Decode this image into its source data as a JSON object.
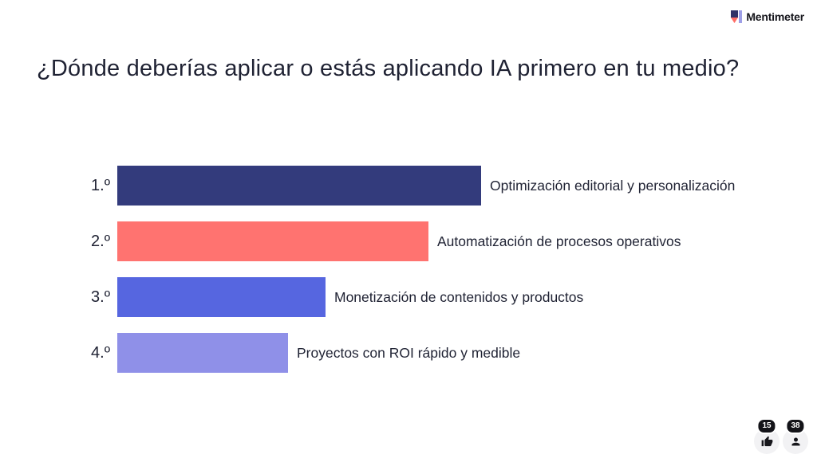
{
  "brand": {
    "logo_text": "Mentimeter",
    "logo_colors": {
      "navy": "#2f3268",
      "coral": "#ff6d66",
      "periwinkle": "#9e9fe7"
    }
  },
  "slide": {
    "title": "¿Dónde deberías aplicar o estás aplicando IA primero en tu medio?"
  },
  "chart": {
    "rows": [
      {
        "rank": "1.º",
        "label": "Optimización editorial y personalización",
        "width_pct": 100,
        "color": "#333b7c"
      },
      {
        "rank": "2.º",
        "label": "Automatización de procesos operativos",
        "width_pct": 85.5,
        "color": "#ff7370"
      },
      {
        "rank": "3.º",
        "label": "Monetización de contenidos y productos",
        "width_pct": 57.2,
        "color": "#5666e0"
      },
      {
        "rank": "4.º",
        "label": "Proyectos con ROI rápido y medible",
        "width_pct": 46.9,
        "color": "#8f90e8"
      }
    ]
  },
  "chart_data": {
    "type": "bar",
    "orientation": "horizontal",
    "title": "¿Dónde deberías aplicar o estás aplicando IA primero en tu medio?",
    "categories": [
      "1.º",
      "2.º",
      "3.º",
      "4.º"
    ],
    "labels": [
      "Optimización editorial y personalización",
      "Automatización de procesos operativos",
      "Monetización de contenidos y productos",
      "Proyectos con ROI rápido y medible"
    ],
    "values": [
      100,
      85.5,
      57.2,
      46.9
    ],
    "values_are_relative_bar_lengths_pct": true,
    "bar_colors": [
      "#333b7c",
      "#ff7370",
      "#5666e0",
      "#8f90e8"
    ],
    "axes_shown": false,
    "grid": false,
    "legend_position": "none"
  },
  "reactions": {
    "thumbs_up_count": "15",
    "participants_count": "38"
  },
  "icons": {
    "logo_icon": "mentimeter-m-mark",
    "thumbs_up": "thumbs-up-icon",
    "person": "person-icon"
  },
  "colors": {
    "background": "#ffffff",
    "text": "#1f2233",
    "reaction_circle": "#f2f2f4",
    "badge_bg": "#131318",
    "badge_text": "#ffffff"
  }
}
